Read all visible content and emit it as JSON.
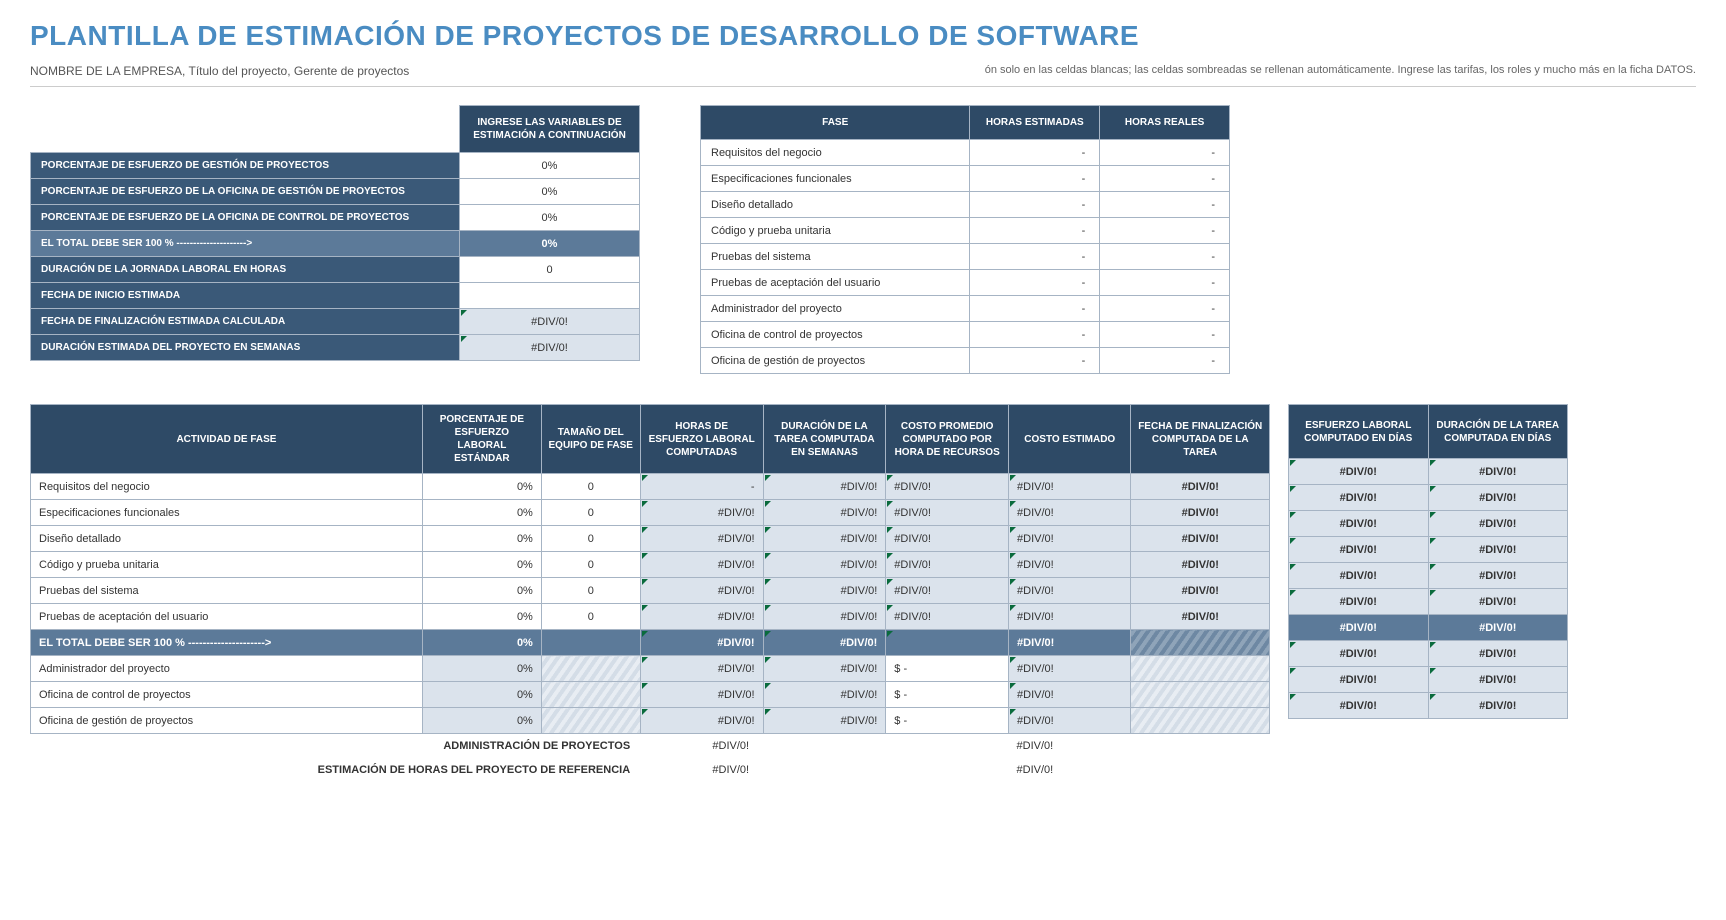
{
  "header": {
    "title": "PLANTILLA DE ESTIMACIÓN DE PROYECTOS DE DESARROLLO DE SOFTWARE",
    "subtitle_left": "NOMBRE DE LA EMPRESA, Título del proyecto, Gerente de proyectos",
    "subtitle_right": "ón solo en las celdas blancas; las celdas sombreadas se rellenan automáticamente.  Ingrese las tarifas, los roles y mucho más en la ficha DATOS."
  },
  "vars": {
    "colhead": "INGRESE LAS VARIABLES DE ESTIMACIÓN A CONTINUACIÓN",
    "rows": [
      {
        "label": "PORCENTAJE DE ESFUERZO DE GESTIÓN DE PROYECTOS",
        "value": "0%",
        "style": "normal"
      },
      {
        "label": "PORCENTAJE DE ESFUERZO DE LA OFICINA DE GESTIÓN DE PROYECTOS",
        "value": "0%",
        "style": "normal"
      },
      {
        "label": "PORCENTAJE DE ESFUERZO DE LA OFICINA DE CONTROL DE PROYECTOS",
        "value": "0%",
        "style": "normal"
      },
      {
        "label": "EL TOTAL DEBE SER 100 % --------------------->",
        "value": "0%",
        "style": "total"
      },
      {
        "label": "DURACIÓN DE LA JORNADA LABORAL EN HORAS",
        "value": "0",
        "style": "normal"
      },
      {
        "label": "FECHA DE INICIO ESTIMADA",
        "value": "",
        "style": "normal"
      },
      {
        "label": "FECHA DE FINALIZACIÓN ESTIMADA CALCULADA",
        "value": "#DIV/0!",
        "style": "calc"
      },
      {
        "label": "DURACIÓN ESTIMADA DEL PROYECTO EN SEMANAS",
        "value": "#DIV/0!",
        "style": "calc"
      }
    ]
  },
  "phaseSummary": {
    "headers": [
      "FASE",
      "HORAS ESTIMADAS",
      "HORAS REALES"
    ],
    "rows": [
      {
        "phase": "Requisitos del negocio",
        "est": "-",
        "act": "-"
      },
      {
        "phase": "Especificaciones funcionales",
        "est": "-",
        "act": "-"
      },
      {
        "phase": "Diseño detallado",
        "est": "-",
        "act": "-"
      },
      {
        "phase": "Código y prueba unitaria",
        "est": "-",
        "act": "-"
      },
      {
        "phase": "Pruebas del sistema",
        "est": "-",
        "act": "-"
      },
      {
        "phase": "Pruebas de aceptación del usuario",
        "est": "-",
        "act": "-"
      },
      {
        "phase": "Administrador del proyecto",
        "est": "-",
        "act": "-"
      },
      {
        "phase": "Oficina de control de proyectos",
        "est": "-",
        "act": "-"
      },
      {
        "phase": "Oficina de gestión de proyectos",
        "est": "-",
        "act": "-"
      }
    ]
  },
  "main": {
    "headers": {
      "activity": "ACTIVIDAD DE FASE",
      "pct": "PORCENTAJE DE ESFUERZO LABORAL ESTÁNDAR",
      "team": "TAMAÑO DEL EQUIPO DE FASE",
      "hours": "HORAS DE ESFUERZO LABORAL COMPUTADAS",
      "weeks": "DURACIÓN DE LA TAREA COMPUTADA EN SEMANAS",
      "rate": "COSTO PROMEDIO COMPUTADO POR HORA DE RECURSOS",
      "estcost": "COSTO ESTIMADO",
      "enddate": "FECHA DE FINALIZACIÓN COMPUTADA DE LA TAREA"
    },
    "rows": [
      {
        "activity": "Requisitos del negocio",
        "pct": "0%",
        "team": "0",
        "hours": "-",
        "weeks": "#DIV/0!",
        "rate": "#DIV/0!",
        "estcost": "#DIV/0!",
        "enddate": "#DIV/0!"
      },
      {
        "activity": "Especificaciones funcionales",
        "pct": "0%",
        "team": "0",
        "hours": "#DIV/0!",
        "weeks": "#DIV/0!",
        "rate": "#DIV/0!",
        "estcost": "#DIV/0!",
        "enddate": "#DIV/0!"
      },
      {
        "activity": "Diseño detallado",
        "pct": "0%",
        "team": "0",
        "hours": "#DIV/0!",
        "weeks": "#DIV/0!",
        "rate": "#DIV/0!",
        "estcost": "#DIV/0!",
        "enddate": "#DIV/0!"
      },
      {
        "activity": "Código y prueba unitaria",
        "pct": "0%",
        "team": "0",
        "hours": "#DIV/0!",
        "weeks": "#DIV/0!",
        "rate": "#DIV/0!",
        "estcost": "#DIV/0!",
        "enddate": "#DIV/0!"
      },
      {
        "activity": "Pruebas del sistema",
        "pct": "0%",
        "team": "0",
        "hours": "#DIV/0!",
        "weeks": "#DIV/0!",
        "rate": "#DIV/0!",
        "estcost": "#DIV/0!",
        "enddate": "#DIV/0!"
      },
      {
        "activity": "Pruebas de aceptación del usuario",
        "pct": "0%",
        "team": "0",
        "hours": "#DIV/0!",
        "weeks": "#DIV/0!",
        "rate": "#DIV/0!",
        "estcost": "#DIV/0!",
        "enddate": "#DIV/0!"
      }
    ],
    "totalRow": {
      "activity": "EL TOTAL DEBE SER 100 % --------------------->",
      "pct": "0%",
      "team": "",
      "hours": "#DIV/0!",
      "weeks": "#DIV/0!",
      "rate": "",
      "estcost": "#DIV/0!",
      "enddate": ""
    },
    "mgmtRows": [
      {
        "activity": "Administrador del proyecto",
        "pct": "0%",
        "team": "",
        "hours": "#DIV/0!",
        "weeks": "#DIV/0!",
        "rate": "$                          -",
        "estcost": "#DIV/0!",
        "enddate": ""
      },
      {
        "activity": "Oficina de control de proyectos",
        "pct": "0%",
        "team": "",
        "hours": "#DIV/0!",
        "weeks": "#DIV/0!",
        "rate": "$                          -",
        "estcost": "#DIV/0!",
        "enddate": ""
      },
      {
        "activity": "Oficina de gestión de proyectos",
        "pct": "0%",
        "team": "",
        "hours": "#DIV/0!",
        "weeks": "#DIV/0!",
        "rate": "$                          -",
        "estcost": "#DIV/0!",
        "enddate": ""
      }
    ],
    "footerRows": [
      {
        "label": "ADMINISTRACIÓN DE PROYECTOS",
        "hours": "#DIV/0!",
        "estcost": "#DIV/0!"
      },
      {
        "label": "ESTIMACIÓN DE HORAS DEL PROYECTO DE REFERENCIA",
        "hours": "#DIV/0!",
        "estcost": "#DIV/0!"
      }
    ]
  },
  "side": {
    "headers": {
      "days": "ESFUERZO LABORAL COMPUTADO EN DÍAS",
      "taskdays": "DURACIÓN DE LA TAREA COMPUTADA EN DÍAS"
    },
    "rows": [
      {
        "d1": "#DIV/0!",
        "d2": "#DIV/0!"
      },
      {
        "d1": "#DIV/0!",
        "d2": "#DIV/0!"
      },
      {
        "d1": "#DIV/0!",
        "d2": "#DIV/0!"
      },
      {
        "d1": "#DIV/0!",
        "d2": "#DIV/0!"
      },
      {
        "d1": "#DIV/0!",
        "d2": "#DIV/0!"
      },
      {
        "d1": "#DIV/0!",
        "d2": "#DIV/0!"
      }
    ],
    "totalRow": {
      "d1": "#DIV/0!",
      "d2": "#DIV/0!"
    },
    "mgmtRows": [
      {
        "d1": "#DIV/0!",
        "d2": "#DIV/0!"
      },
      {
        "d1": "#DIV/0!",
        "d2": "#DIV/0!"
      },
      {
        "d1": "#DIV/0!",
        "d2": "#DIV/0!"
      }
    ]
  },
  "colors": {
    "title": "#4a8cc2",
    "header_dark": "#2e4a66",
    "label_bg": "#3a5978",
    "total_bg": "#5c7a99",
    "calc_bg": "#dbe3ec",
    "border": "#a6b4c4",
    "tri_green": "#0a6b3d"
  }
}
